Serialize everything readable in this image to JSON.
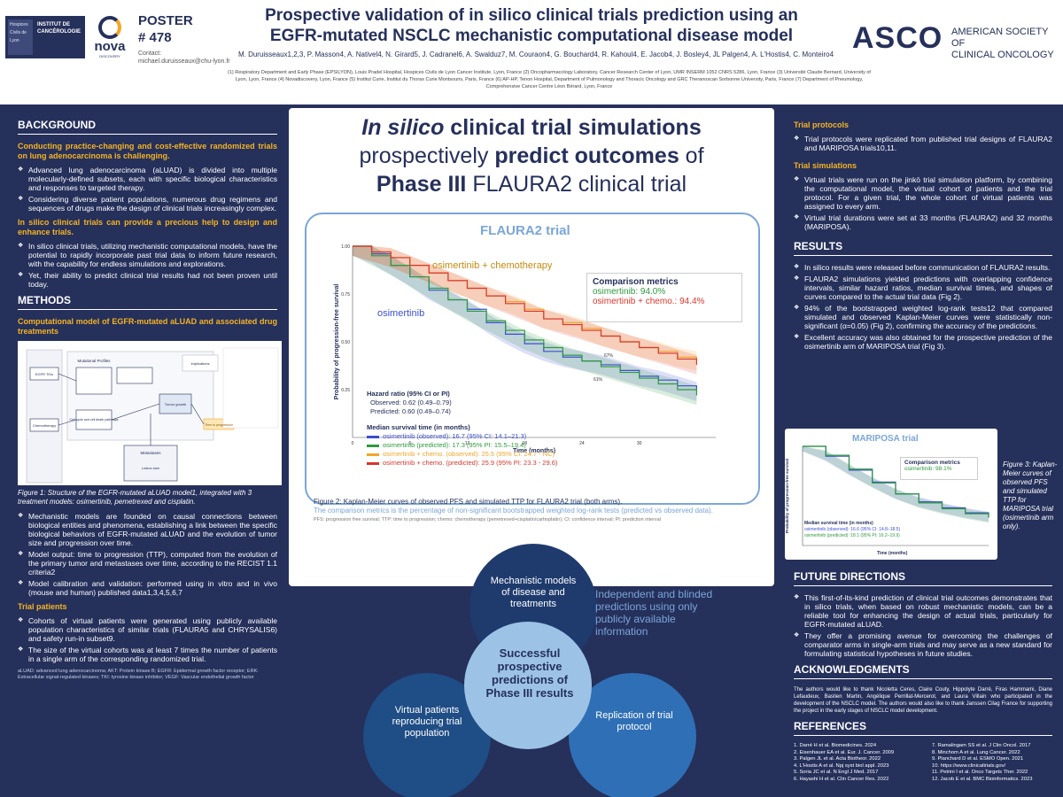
{
  "header": {
    "logo_text": "INSTITUT DE CANCÉROLOGIE",
    "logo_sub": "Hospices Civils de Lyon",
    "nova": "nova",
    "nova_sub": "DISCOVERY",
    "poster_label": "POSTER",
    "poster_number": "# 478",
    "contact_label": "Contact:",
    "contact_email": "michael.duruisseaux@chu-lyon.fr",
    "title_line1": "Prospective validation of in silico clinical trials prediction using an",
    "title_line2": "EGFR-mutated NSCLC mechanistic computational disease model",
    "authors": "M. Duruisseaux1,2,3, P. Masson4, A. Nativel4, N. Girard5, J. Cadranel6, A. Swalduz7, M. Couraon4, G. Bouchard4, R. Kahoul4, E. Jacob4, J. Bosley4, JL Palgen4, A. L'Hostis4, C. Monteiro4",
    "affiliations": "(1) Respiratory Department and Early Phase (EPSILYON), Louis Pradel Hospital, Hospices Civils de Lyon Cancer Institute, Lyon, France (2) Oncopharmacology Laboratory, Cancer Research Center of Lyon, UMR INSERM 1052 CNRS 5286, Lyon, France (3) Université Claude Bernard, University of Lyon, Lyon, France (4) Novadiscovery, Lyon, France (5) Institut Curie, Institut du Thorax Curie Montsouris, Paris, France (6) AP-HP, Tenon Hospital, Department of Pulmonology and Thoracic Oncology and GRC Theranoscan Sorbonne University, Paris, France (7) Department of Pneumology, Comprehensive Cancer Centre Léon Bérard, Lyon, France",
    "asco_big": "ASCO",
    "asco_small1": "AMERICAN SOCIETY OF",
    "asco_small2": "CLINICAL ONCOLOGY"
  },
  "left": {
    "background_h": "BACKGROUND",
    "bg_orange1": "Conducting practice-changing and cost-effective randomized trials on lung adenocarcinoma is challenging.",
    "bg_b1": "Advanced lung adenocarcinoma (aLUAD) is divided into multiple molecularly-defined subsets, each with specific biological characteristics and responses to targeted therapy.",
    "bg_b2": "Considering diverse patient populations, numerous drug regimens and sequences of drugs make the design of clinical trials increasingly complex.",
    "bg_orange2": "In silico clinical trials can provide a precious help to design and enhance trials.",
    "bg_b3": "In silico clinical trials, utilizing mechanistic computational models, have the potential to rapidly incorporate past trial data to inform future research, with the capability for endless simulations and explorations.",
    "bg_b4": "Yet, their ability to predict clinical trial results had not been proven until today.",
    "methods_h": "METHODS",
    "methods_sub": "Computational model of EGFR-mutated aLUAD and associated drug treatments",
    "fig1_cap": "Figure 1: Structure of the EGFR-mutated aLUAD model1, integrated with 3 treatment models: osimertinib, pemetrexed and cisplatin.",
    "fig1_labels": [
      "Mutational Profiles",
      "Implications",
      "EGFR TKIs",
      "Chemotherapy",
      "Cell cycle and cell death pathways",
      "Tumor growth",
      "Metastases",
      "Lesion size",
      "Time to progression"
    ],
    "m_b1": "Mechanistic models are founded on causal connections between biological entities and phenomena, establishing a link between the specific biological behaviors of EGFR-mutated aLUAD and the evolution of tumor size and progression over time.",
    "m_b2": "Model output: time to progression (TTP), computed from the evolution of the primary tumor and metastases over time, according to the RECIST 1.1 criteria2",
    "m_b3": "Model calibration and validation: performed using in vitro and in vivo (mouse and human) published data1,3,4,5,6,7",
    "trial_patients_h": "Trial patients",
    "tp_b1": "Cohorts of virtual patients were generated using publicly available population characteristics of similar trials (FLAURA5 and CHRYSALIS6) and safety run-in subset9.",
    "tp_b2": "The size of the virtual cohorts was at least 7 times the number of patients in a single arm of the corresponding randomized trial.",
    "footnote": "aLUAD: advanced lung adenocarcinoma; AKT: Protein kinase B; EGFR: Epidermal growth factor receptor; ERK: Extracellular signal-regulated kinases; TKI: tyrosine kinase inhibitor; VEGF: Vascular endothelial growth factor"
  },
  "center": {
    "title_l1_italic": "In silico",
    "title_l1_rest": " clinical trial simulations",
    "title_l2_a": "prospectively ",
    "title_l2_b": "predict outcomes",
    "title_l2_c": " of",
    "title_l3_a": "Phase III",
    "title_l3_b": " FLAURA2 clinical trial",
    "chart_title": "FLAURA2 trial",
    "label_osi_chemo": "osimertinib + chemotherapy",
    "label_osi": "osimertinib",
    "cm_title": "Comparison metrics",
    "cm_1": "osimertinib: 94.0%",
    "cm_2": "osimertinib + chemo.: 94.4%",
    "hr_title": "Hazard ratio (95% CI or PI)",
    "hr_obs": "Observed: 0.62 (0.49–0.79)",
    "hr_pred": "Predicted: 0.60 (0.49–0.74)",
    "ms_title": "Median survival time (in months)",
    "legend": [
      "osimertinib (observed): 16.7 (95% CI: 14.1–21.3)",
      "osimertinib (predicted): 17.3 (95% PI: 15.5–19.4)",
      "osimertinib + chemo. (observed): 25.5 (95% CI: 24.7 - NC)",
      "osimertinib + chemo. (predicted): 25.9 (95% PI: 23.3 - 29.6)"
    ],
    "pct_61": "61%",
    "pct_67": "67%",
    "fig2_cap": "Figure 2: Kaplan-Meier curves of observed PFS and simulated TTP for FLAURA2 trial (both arms).",
    "fig2_cap2": "The comparison metrics is the percentage of non-significant bootstrapped weighted log-rank tests (predicted vs observed data).",
    "fig2_small": "PFS: progression free survival; TTP: time to progression; chemo: chemotherapy (pemetrexed+cisplatin/carboplatin); CI: confidence interval; PI: prediction interval",
    "venn_top": "Mechanistic models of disease and treatments",
    "venn_left": "Virtual patients reproducing trial population",
    "venn_right": "Replication of trial protocol",
    "venn_center": "Successful prospective predictions of Phase III results",
    "venn_side": "Independent and blinded predictions using only publicly available information"
  },
  "chart_data": [
    {
      "type": "line",
      "title": "FLAURA2 trial",
      "xlabel": "Time (months)",
      "ylabel": "Probability of progression-free survival",
      "xlim": [
        0,
        38
      ],
      "ylim": [
        0,
        1
      ],
      "x_ticks": [
        0,
        6,
        12,
        18,
        24,
        30
      ],
      "y_ticks": [
        0.25,
        0.5,
        0.75,
        1.0
      ],
      "series": [
        {
          "name": "osimertinib (observed)",
          "color": "#3b4fd0",
          "x": [
            0,
            2,
            4,
            6,
            8,
            10,
            12,
            14,
            16,
            18,
            20,
            22,
            24,
            26,
            28,
            30,
            32,
            34,
            36
          ],
          "values": [
            1.0,
            0.96,
            0.9,
            0.84,
            0.77,
            0.72,
            0.67,
            0.6,
            0.54,
            0.49,
            0.45,
            0.42,
            0.4,
            0.38,
            0.35,
            0.32,
            0.3,
            0.27,
            0.24
          ]
        },
        {
          "name": "osimertinib (predicted)",
          "color": "#2e9a3e",
          "x": [
            0,
            2,
            4,
            6,
            8,
            10,
            12,
            14,
            16,
            18,
            20,
            22,
            24,
            26,
            28,
            30,
            32,
            34,
            36
          ],
          "values": [
            1.0,
            0.95,
            0.9,
            0.84,
            0.78,
            0.72,
            0.66,
            0.61,
            0.56,
            0.51,
            0.47,
            0.43,
            0.4,
            0.37,
            0.34,
            0.31,
            0.28,
            0.25,
            0.22
          ]
        },
        {
          "name": "osimertinib + chemo. (observed)",
          "color": "#f2a62b",
          "x": [
            0,
            2,
            4,
            6,
            8,
            10,
            12,
            14,
            16,
            18,
            20,
            22,
            24,
            26,
            28,
            30,
            32,
            34,
            36
          ],
          "values": [
            1.0,
            0.97,
            0.94,
            0.9,
            0.86,
            0.82,
            0.78,
            0.74,
            0.71,
            0.67,
            0.62,
            0.6,
            0.57,
            0.53,
            0.5,
            0.47,
            0.45,
            0.42,
            0.4
          ]
        },
        {
          "name": "osimertinib + chemo. (predicted)",
          "color": "#d8362b",
          "x": [
            0,
            2,
            4,
            6,
            8,
            10,
            12,
            14,
            16,
            18,
            20,
            22,
            24,
            26,
            28,
            30,
            32,
            34,
            36
          ],
          "values": [
            1.0,
            0.97,
            0.94,
            0.9,
            0.86,
            0.82,
            0.78,
            0.74,
            0.7,
            0.66,
            0.62,
            0.59,
            0.56,
            0.53,
            0.5,
            0.47,
            0.44,
            0.41,
            0.38
          ]
        }
      ]
    },
    {
      "type": "line",
      "title": "MARIPOSA trial",
      "xlabel": "Time (months)",
      "ylabel": "Probability of progression-free survival",
      "xlim": [
        0,
        32
      ],
      "ylim": [
        0,
        1
      ],
      "series": [
        {
          "name": "osimertinib (observed)",
          "color": "#3b4fd0",
          "x": [
            0,
            4,
            8,
            12,
            16,
            20,
            24,
            28,
            32
          ],
          "values": [
            1.0,
            0.9,
            0.76,
            0.64,
            0.52,
            0.44,
            0.38,
            0.33,
            0.29
          ]
        },
        {
          "name": "osimertinib (predicted)",
          "color": "#2e9a3e",
          "x": [
            0,
            4,
            8,
            12,
            16,
            20,
            24,
            28,
            32
          ],
          "values": [
            1.0,
            0.91,
            0.77,
            0.63,
            0.52,
            0.43,
            0.37,
            0.32,
            0.28
          ]
        }
      ]
    }
  ],
  "right": {
    "tp_h": "Trial protocols",
    "tp_b1": "Trial protocols were replicated from published trial designs of FLAURA2 and MARIPOSA trials10,11.",
    "ts_h": "Trial simulations",
    "ts_b1": "Virtual trials were run on the jinkō trial simulation platform, by combining the computational model, the virtual cohort of patients and the trial protocol. For a given trial, the whole cohort of virtual patients was assigned to every arm.",
    "ts_b2": "Virtual trial durations were set at 33 months (FLAURA2) and 32 months (MARIPOSA).",
    "results_h": "RESULTS",
    "r_b1": "In silico results were released before communication of FLAURA2 results.",
    "r_b2": "FLAURA2 simulations yielded predictions with overlapping confidence intervals, similar hazard ratios, median survival times, and shapes of curves compared to the actual trial data (Fig 2).",
    "r_b3": "94% of the bootstrapped weighted log-rank tests12 that compared simulated and observed Kaplan-Meier curves were statistically non-significant (α=0.05) (Fig 2), confirming the accuracy of the predictions.",
    "r_b4": "Excellent accuracy was also obtained for the prospective prediction of the osimertinib arm of MARIPOSA trial (Fig 3).",
    "mariposa_title": "MARIPOSA trial",
    "m_cm_title": "Comparison metrics",
    "m_cm_1": "osimertinib: 98.1%",
    "m_ms_title": "Median survival time (in months)",
    "m_leg1": "osimertinib (observed): 16.6 (95% CI: 14.8–18.5)",
    "m_leg2": "osimertinib (predicted): 18.1 (95% PI: 16.2–19.9)",
    "m_xlabel": "Time (months)",
    "fig3_cap": "Figure 3: Kaplan-Meier curves of observed PFS and simulated TTP for MARIPOSA trial (osimertinib arm only).",
    "fd_h": "FUTURE DIRECTIONS",
    "fd_b1": "This first-of-its-kind prediction of clinical trial outcomes demonstrates that in silico trials, when based on robust mechanistic models, can be a reliable tool for enhancing the design of actual trials, particularly for EGFR-mutated aLUAD.",
    "fd_b2": "They offer a promising avenue for overcoming the challenges of comparator arms in single-arm trials and may serve as a new standard for formulating statistical hypotheses in future studies.",
    "ack_h": "ACKNOWLEDGMENTS",
    "ack_text": "The authors would like to thank Nicoletta Ceres, Claire Couty, Hippolyte Darré, Firas Hammami, Diane Lefaudeux, Bastien Martin, Angélique Perrillat-Mercerot, and Laura Villain who participated in the development of the NSCLC model. The authors would also like to thank Janssen Cilag France for supporting the project in the early stages of NSCLC model development.",
    "ref_h": "REFERENCES",
    "refs_col1": [
      "1. Darré H et al. Biomedicines. 2024",
      "2. Eisenhauer EA et al. Eur. J. Cancer. 2009",
      "3. Palgen JL et al. Acta Biotheor. 2022",
      "4. L'Hostis A et al. Npj syst biol appl. 2023",
      "5. Soria JC et al. N Engl J Med. 2017",
      "6. Hayashi H et al. Clin Cancer Res. 2022"
    ],
    "refs_col2": [
      "7. Ramalingam SS et al. J Clin Oncol. 2017",
      "8. Minchom A et al. Lung Cancer. 2022",
      "9. Planchard D et al. ESMO Open. 2021",
      "10. https://www.clinicaltrials.gov/",
      "11. Petrini I et al. Onco Targets Ther. 2022",
      "12. Jacob E et al. BMC Bioinformatics. 2023"
    ]
  }
}
